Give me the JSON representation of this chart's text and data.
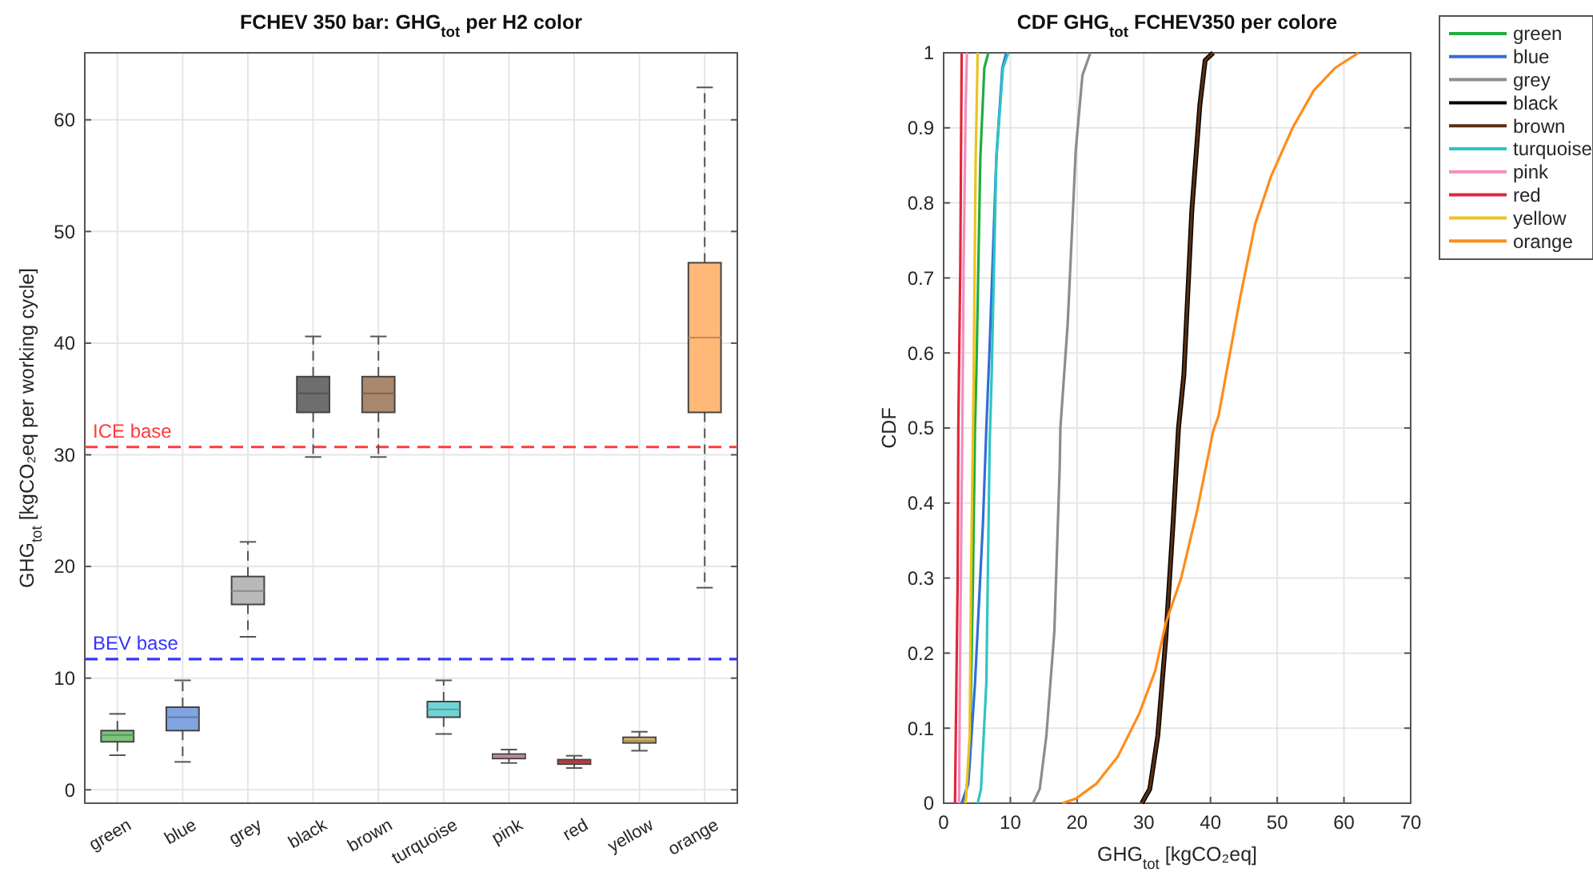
{
  "chart_data": [
    {
      "type": "box",
      "title": "FCHEV 350 bar: GHG$_{tot}$ per H2 color",
      "ylabel": "GHG$_{tot}$ [kgCO₂eq per working cycle]",
      "categories": [
        "green",
        "blue",
        "grey",
        "black",
        "brown",
        "turquoise",
        "pink",
        "red",
        "yellow",
        "orange"
      ],
      "colors": [
        "#7cc47f",
        "#80a4e0",
        "#b9b9b9",
        "#6e6e6e",
        "#a8876c",
        "#70d4d4",
        "#f0a4c4",
        "#e04848",
        "#e6c067",
        "#ffb877"
      ],
      "boxes": [
        {
          "low": 3.1,
          "q1": 4.3,
          "median": 4.9,
          "q3": 5.3,
          "high": 6.8
        },
        {
          "low": 2.5,
          "q1": 5.3,
          "median": 6.5,
          "q3": 7.4,
          "high": 9.8
        },
        {
          "low": 13.7,
          "q1": 16.6,
          "median": 17.8,
          "q3": 19.1,
          "high": 22.2
        },
        {
          "low": 29.8,
          "q1": 33.8,
          "median": 35.5,
          "q3": 37.0,
          "high": 40.6
        },
        {
          "low": 29.8,
          "q1": 33.8,
          "median": 35.5,
          "q3": 37.0,
          "high": 40.6
        },
        {
          "low": 5.0,
          "q1": 6.5,
          "median": 7.2,
          "q3": 7.9,
          "high": 9.8
        },
        {
          "low": 2.4,
          "q1": 2.8,
          "median": 3.0,
          "q3": 3.2,
          "high": 3.6
        },
        {
          "low": 1.95,
          "q1": 2.3,
          "median": 2.5,
          "q3": 2.7,
          "high": 3.05
        },
        {
          "low": 3.5,
          "q1": 4.2,
          "median": 4.4,
          "q3": 4.7,
          "high": 5.2
        },
        {
          "low": 18.1,
          "q1": 33.8,
          "median": 40.5,
          "q3": 47.2,
          "high": 62.9
        }
      ],
      "ylim": [
        -1.2,
        66
      ],
      "yticks": [
        0,
        10,
        20,
        30,
        40,
        50,
        60
      ],
      "grid": true,
      "ref_lines": [
        {
          "axis": "y",
          "value": 30.7,
          "label": "ICE base",
          "color": "#ff3b3b",
          "line_style": "dashed"
        },
        {
          "axis": "y",
          "value": 11.7,
          "label": "BEV base",
          "color": "#3535ff",
          "line_style": "dashed"
        }
      ]
    },
    {
      "type": "line",
      "title": "CDF GHG$_{tot}$ FCHEV350 per colore",
      "xlabel": "GHG$_{tot}$ [kgCO₂eq]",
      "ylabel": "CDF",
      "xlim": [
        0,
        70
      ],
      "xticks": [
        0,
        10,
        20,
        30,
        40,
        50,
        60,
        70
      ],
      "ylim": [
        0,
        1
      ],
      "yticks": [
        0,
        0.1,
        0.2,
        0.3,
        0.4,
        0.5,
        0.6,
        0.7,
        0.8,
        0.9,
        1
      ],
      "grid": true,
      "legend": "right",
      "marker": "none",
      "line_style": "solid",
      "series": [
        {
          "name": "green",
          "color": "#1fad3f",
          "x": [
            3.2,
            3.9,
            4.4,
            4.7,
            4.9,
            5.5,
            6.1,
            6.7
          ],
          "values": [
            0,
            0.055,
            0.3,
            0.5,
            0.57,
            0.86,
            0.98,
            1
          ]
        },
        {
          "name": "blue",
          "color": "#2f6fd6",
          "x": [
            2.7,
            3.7,
            4.7,
            5.9,
            6.4,
            6.9,
            7.9,
            8.8,
            9.4
          ],
          "values": [
            0,
            0.026,
            0.16,
            0.375,
            0.5,
            0.61,
            0.86,
            0.98,
            1
          ]
        },
        {
          "name": "grey",
          "color": "#8c8c8c",
          "x": [
            13.4,
            14.4,
            15.4,
            16.6,
            17.4,
            17.5,
            18.6,
            19.8,
            20.8,
            22.0
          ],
          "values": [
            0,
            0.019,
            0.09,
            0.23,
            0.45,
            0.5,
            0.64,
            0.87,
            0.97,
            1
          ]
        },
        {
          "name": "black",
          "color": "#000000",
          "x": [
            29.7,
            30.9,
            32.1,
            33.3,
            34.4,
            35.2,
            36.0,
            37.2,
            38.4,
            39.2,
            40.4
          ],
          "values": [
            0,
            0.019,
            0.09,
            0.22,
            0.375,
            0.5,
            0.57,
            0.79,
            0.93,
            0.99,
            1
          ]
        },
        {
          "name": "brown",
          "color": "#5a2f12",
          "x": [
            29.7,
            30.9,
            32.1,
            33.3,
            34.4,
            35.2,
            36.0,
            37.2,
            38.4,
            39.2,
            40.4
          ],
          "values": [
            0,
            0.019,
            0.09,
            0.22,
            0.375,
            0.5,
            0.57,
            0.79,
            0.93,
            0.99,
            1
          ]
        },
        {
          "name": "turquoise",
          "color": "#2fc4c4",
          "x": [
            5.1,
            5.6,
            6.4,
            6.9,
            7.2,
            7.9,
            8.9,
            9.7
          ],
          "values": [
            0,
            0.019,
            0.16,
            0.48,
            0.57,
            0.86,
            0.98,
            1
          ]
        },
        {
          "name": "pink",
          "color": "#f48cc0",
          "x": [
            2.3,
            2.5,
            2.8,
            3.0,
            3.3,
            3.5
          ],
          "values": [
            0,
            0.23,
            0.5,
            0.72,
            0.93,
            1
          ]
        },
        {
          "name": "red",
          "color": "#e0283a",
          "x": [
            1.7,
            2.1,
            2.2,
            2.5,
            2.7
          ],
          "values": [
            0,
            0.3,
            0.5,
            0.72,
            1
          ]
        },
        {
          "name": "yellow",
          "color": "#eec21f",
          "x": [
            3.3,
            3.9,
            4.1,
            4.4,
            4.5,
            4.8,
            5.1
          ],
          "values": [
            0,
            0.09,
            0.3,
            0.5,
            0.57,
            0.86,
            1
          ]
        },
        {
          "name": "orange",
          "color": "#ff8c1a",
          "x": [
            17.8,
            19.8,
            22.9,
            26.1,
            29.3,
            31.7,
            33.3,
            35.6,
            38.0,
            40.4,
            41.2,
            44.4,
            46.7,
            49.1,
            52.3,
            55.5,
            58.7,
            62.2
          ],
          "values": [
            0,
            0.006,
            0.026,
            0.062,
            0.119,
            0.176,
            0.24,
            0.3,
            0.39,
            0.496,
            0.516,
            0.672,
            0.772,
            0.836,
            0.9,
            0.95,
            0.98,
            1
          ]
        }
      ]
    }
  ]
}
